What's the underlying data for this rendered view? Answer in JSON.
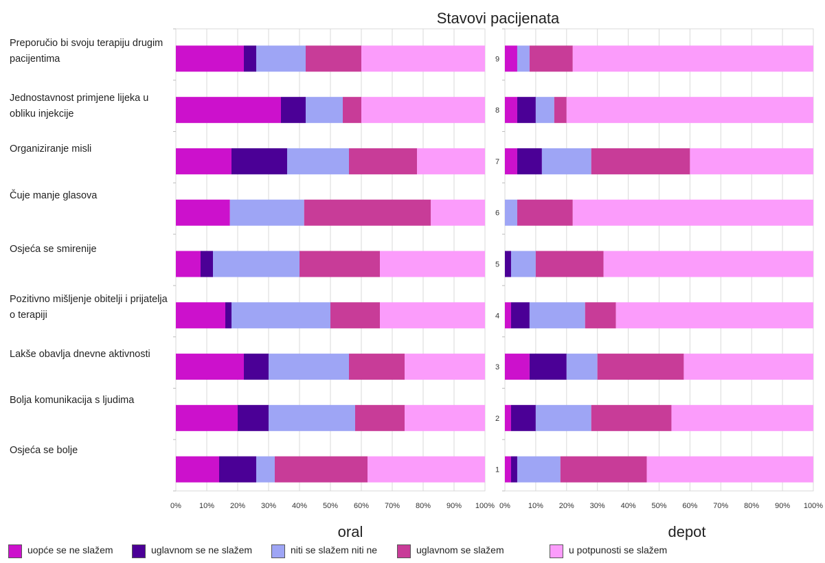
{
  "chart_data": {
    "type": "bar",
    "orientation": "horizontal",
    "stacked": "percent",
    "title": "Stavovi pacijenata",
    "grid": true,
    "xlim": [
      0,
      100
    ],
    "x_ticks": [
      "0%",
      "10%",
      "20%",
      "30%",
      "40%",
      "50%",
      "60%",
      "70%",
      "80%",
      "90%",
      "100%"
    ],
    "legend": {
      "position": "bottom",
      "entries": [
        {
          "name": "uopće se ne slažem",
          "color": "#cc11cc"
        },
        {
          "name": "uglavnom se ne slažem",
          "color": "#4b0096"
        },
        {
          "name": "niti se slažem niti ne",
          "color": "#9ea5f5"
        },
        {
          "name": "uglavnom se slažem",
          "color": "#c83c98"
        },
        {
          "name": "u potpunosti se slažem",
          "color": "#fb9cfb"
        }
      ]
    },
    "categories": [
      "Preporučio bi svoju terapiju drugim pacijentima",
      "Jednostavnost primjene lijeka u obliku injekcije",
      "Organiziranje misli",
      "Čuje manje glasova",
      "Osjeća se smirenije",
      "Pozitivno mišljenje obitelji i prijatelja o terapiji",
      "Lakše obavlja dnevne aktivnosti",
      "Bolja komunikacija s ljudima",
      "Osjeća se bolje"
    ],
    "panels": [
      {
        "name": "oral",
        "series": [
          {
            "values": [
              22,
              34,
              18,
              17.5,
              8,
              16,
              22,
              20,
              14
            ]
          },
          {
            "values": [
              4,
              8,
              18,
              0,
              4,
              2,
              8,
              10,
              12
            ]
          },
          {
            "values": [
              16,
              12,
              20,
              24,
              28,
              32,
              26,
              28,
              6
            ]
          },
          {
            "values": [
              18,
              6,
              22,
              41,
              26,
              16,
              18,
              16,
              30
            ]
          },
          {
            "values": [
              40,
              40,
              22,
              17.5,
              34,
              34,
              26,
              26,
              38
            ]
          }
        ]
      },
      {
        "name": "depot",
        "row_numbers": [
          "9",
          "8",
          "7",
          "6",
          "5",
          "4",
          "3",
          "2",
          "1"
        ],
        "series": [
          {
            "values": [
              4,
              4,
              4,
              0,
              0,
              2,
              8,
              2,
              2
            ]
          },
          {
            "values": [
              0,
              6,
              8,
              0,
              2,
              6,
              12,
              8,
              2
            ]
          },
          {
            "values": [
              4,
              6,
              16,
              4,
              8,
              18,
              10,
              18,
              14
            ]
          },
          {
            "values": [
              14,
              4,
              32,
              18,
              22,
              10,
              28,
              26,
              28
            ]
          },
          {
            "values": [
              78,
              80,
              40,
              78,
              68,
              64,
              42,
              46,
              54
            ]
          }
        ]
      }
    ]
  }
}
